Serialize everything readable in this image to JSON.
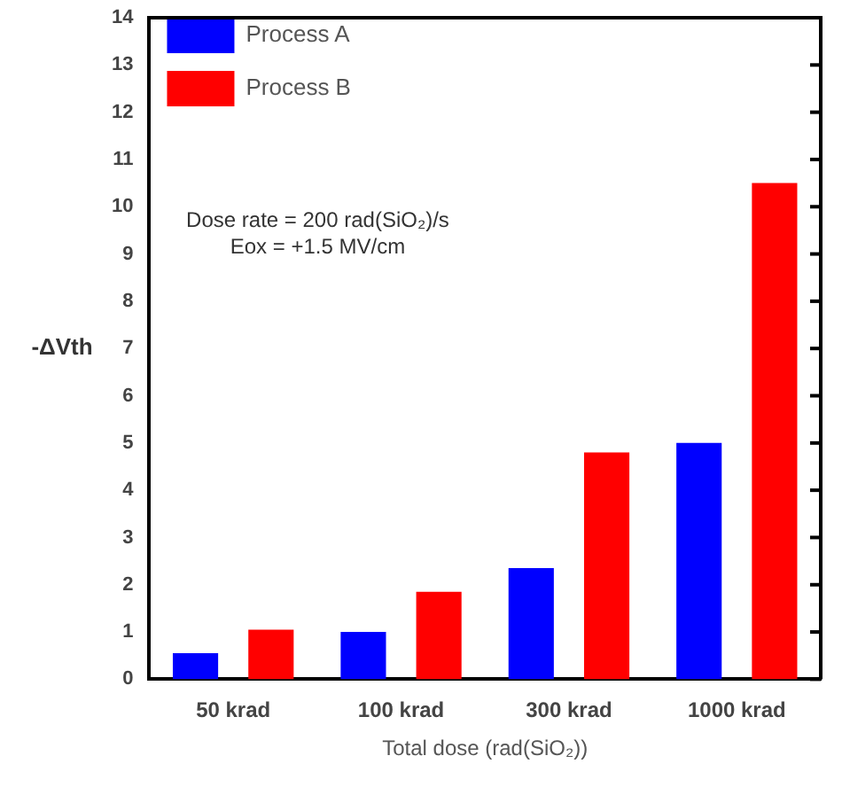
{
  "chart_data": {
    "type": "bar",
    "xlabel": "Total dose (rad(SiO₂))",
    "ylabel": "-ΔVth",
    "categories": [
      "50 krad",
      "100 krad",
      "300 krad",
      "1000 krad"
    ],
    "series": [
      {
        "name": "Process A",
        "color": "#0000ff",
        "values": [
          0.55,
          1.0,
          2.35,
          5.0
        ]
      },
      {
        "name": "Process B",
        "color": "#ff0000",
        "values": [
          1.05,
          1.85,
          4.8,
          10.5
        ]
      }
    ],
    "ylim": [
      0,
      14
    ],
    "yticks": [
      0,
      1,
      2,
      3,
      4,
      5,
      6,
      7,
      8,
      9,
      10,
      11,
      12,
      13,
      14
    ],
    "annotations": [
      "Dose rate = 200 rad(SiO₂)/s",
      "Eox = +1.5 MV/cm"
    ],
    "legend": "top left",
    "grid": false
  }
}
